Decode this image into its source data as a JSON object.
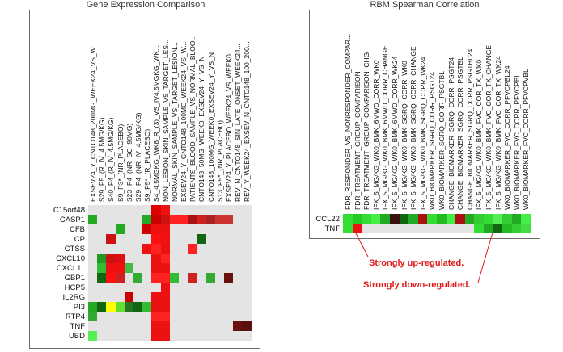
{
  "colors": {
    "up": "#ee1111",
    "up_strong": "#dd0000",
    "down": "#22bb22",
    "down_dark": "#116611",
    "up_dark": "#7a1010",
    "neutral": "#e4e4e4",
    "annotation": "#e01b1b"
  },
  "left_panel": {
    "title": "Gene Expression Comparison",
    "columns": [
      "EXSEV24_Y_CNTO148_200MG_WEEK24_VS_W...",
      "S29_P5_(R_IV_4.5MG/KG)",
      "S40_P4_(R_IV_4.5MG/KG)",
      "S9_P3*_(NR_PLACEBO)",
      "S23_P4_(NR_SC_90MG)",
      "S29_P4_(NR_IV_4.5MG/KG)",
      "S9_P5*_(R_PLACEBO)",
      "S4_4.5MGKG_WK8_R_(3)_VS_IV4.5MGKG_WK...",
      "NON_LESION_SKIN_SAMPLE_VS_TARGET_LES...",
      "NORMAL_SKIN_SAMPLE_VS_TARGET_LESION...",
      "EXSEV24_Y_CNTO148_100MG_WEEK24_VS_W...",
      "PATIENTS_BLOOD_SAMPLE_VS_NORMAL_BLOO...",
      "CNTO148_50MG_WEEK0_EXSEV24_Y_VS_N",
      "CNTO148_100MG_WEEK0_EXSEV24_Y_VS_N",
      "S13_P5*_(NR_PLACEBO)",
      "EXSEV24_Y_PLACEBO_WEEK24_VS_WEEK0",
      "REV_N_CNTO148_SIN_LATE_ONSET_WEEK24...",
      "REV_Y_WEEK24_EXSEV_N_CNTO148_100_200..."
    ],
    "rows": [
      "C15orf48",
      "CASP1",
      "CFB",
      "CP",
      "CTSS",
      "CXCL10",
      "CXCL11",
      "GBP1",
      "HCP5",
      "IL2RG",
      "PI3",
      "RTP4",
      "TNF",
      "UBD"
    ],
    "cells": [
      [
        0,
        7,
        "#dd0000"
      ],
      [
        0,
        8,
        "#ee1111"
      ],
      [
        1,
        0,
        "#22aa22"
      ],
      [
        1,
        6,
        "#22aa22"
      ],
      [
        1,
        7,
        "#cc0000"
      ],
      [
        1,
        8,
        "#cc1111"
      ],
      [
        1,
        9,
        "#ff2222"
      ],
      [
        1,
        10,
        "#ff2222"
      ],
      [
        1,
        11,
        "#aa1111"
      ],
      [
        1,
        12,
        "#cc2222"
      ],
      [
        1,
        13,
        "#aa2222"
      ],
      [
        1,
        14,
        "#cc3333"
      ],
      [
        1,
        15,
        "#cc3333"
      ],
      [
        2,
        3,
        "#22aa22"
      ],
      [
        2,
        6,
        "#cc0000"
      ],
      [
        2,
        7,
        "#ee1111"
      ],
      [
        2,
        8,
        "#ee1111"
      ],
      [
        3,
        2,
        "#cc1111"
      ],
      [
        3,
        7,
        "#ff1111"
      ],
      [
        3,
        8,
        "#ee1111"
      ],
      [
        3,
        12,
        "#116611"
      ],
      [
        4,
        6,
        "#ee1111"
      ],
      [
        4,
        7,
        "#ff2222"
      ],
      [
        4,
        8,
        "#ee1111"
      ],
      [
        4,
        11,
        "#ff2222"
      ],
      [
        5,
        1,
        "#229922"
      ],
      [
        5,
        2,
        "#cc1111"
      ],
      [
        5,
        3,
        "#dd1111"
      ],
      [
        5,
        7,
        "#ee1111"
      ],
      [
        5,
        8,
        "#ff2222"
      ],
      [
        6,
        1,
        "#33bb33"
      ],
      [
        6,
        2,
        "#ee1111"
      ],
      [
        6,
        3,
        "#ee1111"
      ],
      [
        6,
        4,
        "#44bb44"
      ],
      [
        6,
        7,
        "#ee1111"
      ],
      [
        6,
        8,
        "#ee1111"
      ],
      [
        7,
        1,
        "#116611"
      ],
      [
        7,
        2,
        "#ff1111"
      ],
      [
        7,
        3,
        "#cc2222"
      ],
      [
        7,
        5,
        "#33aa33"
      ],
      [
        7,
        7,
        "#ff2222"
      ],
      [
        7,
        8,
        "#ff2222"
      ],
      [
        7,
        9,
        "#33bb33"
      ],
      [
        7,
        11,
        "#cc2222"
      ],
      [
        7,
        13,
        "#33aa33"
      ],
      [
        7,
        15,
        "#6a1010"
      ],
      [
        8,
        8,
        "#ee1111"
      ],
      [
        9,
        4,
        "#cc0000"
      ],
      [
        9,
        7,
        "#ee1111"
      ],
      [
        9,
        8,
        "#ee1111"
      ],
      [
        10,
        0,
        "#22aa22"
      ],
      [
        10,
        1,
        "#116611"
      ],
      [
        10,
        2,
        "#ffff00"
      ],
      [
        10,
        3,
        "#66dd33"
      ],
      [
        10,
        4,
        "#227722"
      ],
      [
        10,
        5,
        "#116611"
      ],
      [
        10,
        6,
        "#33bb33"
      ],
      [
        10,
        7,
        "#ee1111"
      ],
      [
        10,
        8,
        "#ee1111"
      ],
      [
        11,
        0,
        "#33aa33"
      ],
      [
        11,
        7,
        "#ff2222"
      ],
      [
        11,
        8,
        "#ff2222"
      ],
      [
        12,
        7,
        "#ee1111"
      ],
      [
        12,
        8,
        "#ee1111"
      ],
      [
        12,
        16,
        "#6a1010"
      ],
      [
        12,
        17,
        "#5a1010"
      ],
      [
        13,
        0,
        "#55ee55"
      ],
      [
        13,
        7,
        "#ee1111"
      ],
      [
        13,
        8,
        "#ee1111"
      ]
    ]
  },
  "right_panel": {
    "title": "RBM Spearman Correlation",
    "columns": [
      "FDR_RESPONDER_VS_NONRESPONDER_COMPAR...",
      "FDR_TREATMENT_GROUP_COMPARISON",
      "FDR_TREATMENT_GROUP_COMPARISON_CHG",
      "IFX_5_MG/KG_WK0_BMK_6MWD_CORR_WK0",
      "IFX_5_MG/KG_WK0_BMK_6MWD_CORR_CHANGE",
      "IFX_5_MG/KG_WK0_BMK_6MWD_CORR_WK24",
      "IFX_5_MG/KG_WK0_BMK_SGRQ_CORR_WK0",
      "IFX_5_MG/KG_WK0_BMK_SGRQ_CORR_CHANGE",
      "IFX_5_MG/KG_WK0_BMK_SGRQ_CORR_WK24",
      "WK0_BIOMARKER_SGRQ_CORR_PSGT24",
      "WK0_BIOMARKER_SGRQ_CORR_PSGTBL",
      "CHANGE_BIOMARKER_SGRQ_CORR_PSGT24",
      "CHANGE_BIOMARKER_SGRQ_CORR_PSGTBL",
      "CHANGE_BIOMARKER_SGRQ_CORR_PSGTBL24",
      "IFX_5_MG/KG_WK0_BMK_FVC_COR_TX_WK0",
      "IFX_5_MG/KG_WK0_BMK_FVC_COR_TX_CHANGE",
      "IFX_5_MG/KG_WK0_BMK_FVC_COR_TX_WK24",
      "WK0_BIOMARKER_FVC_CORR_PFVCPBL24",
      "WK0_BIOMARKER_FVC_CORR_PFVCPBL",
      "WK0_BIOMARKER_FVC_CORR_PFVCPVBL"
    ],
    "rows": [
      "CCL22",
      "TNF"
    ],
    "cells": [
      [
        0,
        0,
        "#33dd33"
      ],
      [
        0,
        1,
        "#22cc22"
      ],
      [
        0,
        2,
        "#33dd33"
      ],
      [
        0,
        3,
        "#44ee44"
      ],
      [
        0,
        4,
        "#22aa22"
      ],
      [
        0,
        5,
        "#3a1010"
      ],
      [
        0,
        6,
        "#116611"
      ],
      [
        0,
        7,
        "#22aa22"
      ],
      [
        0,
        8,
        "#aa1111"
      ],
      [
        0,
        9,
        "#33dd33"
      ],
      [
        0,
        10,
        "#22bb22"
      ],
      [
        0,
        11,
        "#44ee44"
      ],
      [
        0,
        12,
        "#aa1111"
      ],
      [
        0,
        13,
        "#22aa22"
      ],
      [
        0,
        14,
        "#33cc33"
      ],
      [
        0,
        15,
        "#33dd33"
      ],
      [
        0,
        16,
        "#55ee55"
      ],
      [
        0,
        17,
        "#33cc33"
      ],
      [
        0,
        18,
        "#22aa22"
      ],
      [
        0,
        19,
        "#44ee44"
      ],
      [
        1,
        0,
        "#33dd33"
      ],
      [
        1,
        1,
        "#ee1111"
      ],
      [
        1,
        14,
        "#33dd33"
      ],
      [
        1,
        15,
        "#22aa22"
      ],
      [
        1,
        16,
        "#116611"
      ],
      [
        1,
        17,
        "#22bb22"
      ],
      [
        1,
        18,
        "#33cc33"
      ],
      [
        1,
        19,
        "#44dd44"
      ]
    ]
  },
  "annotations": {
    "up": "Strongly up-regulated.",
    "down": "Strongly down-regulated."
  }
}
